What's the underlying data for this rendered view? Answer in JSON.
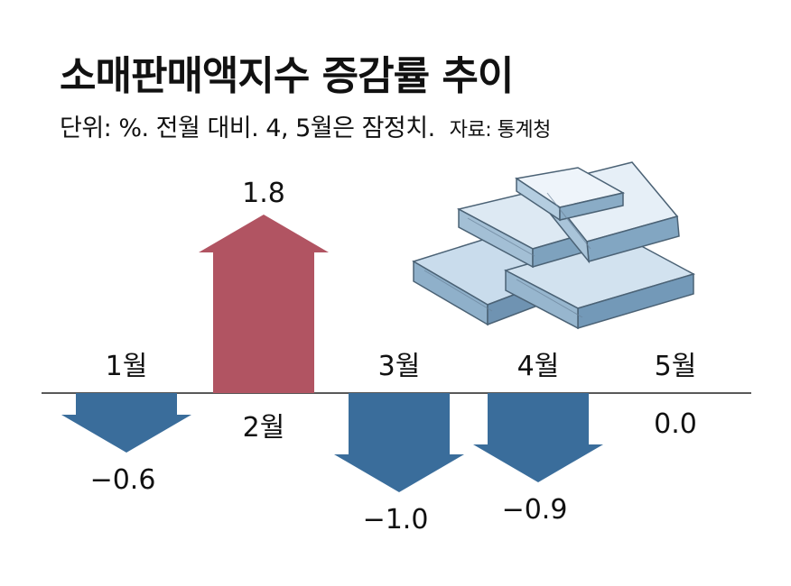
{
  "title": "소매판매액지수 증감률 추이",
  "subtitle": "단위: %. 전월 대비. 4, 5월은 잠정치.",
  "source": "자료: 통계청",
  "colors": {
    "up": "#b15462",
    "down": "#3a6d9b",
    "axis": "#222222"
  },
  "icon": "money-stack-icon",
  "chart_data": {
    "type": "bar",
    "title": "소매판매액지수 증감률 추이",
    "categories": [
      "1월",
      "2월",
      "3월",
      "4월",
      "5월"
    ],
    "values": [
      -0.6,
      1.8,
      -1.0,
      -0.9,
      0.0
    ],
    "value_labels": [
      "−0.6",
      "1.8",
      "−1.0",
      "−0.9",
      "0.0"
    ],
    "ylabel": "",
    "xlabel": "",
    "unit": "%",
    "grid": false,
    "legend": "none"
  }
}
